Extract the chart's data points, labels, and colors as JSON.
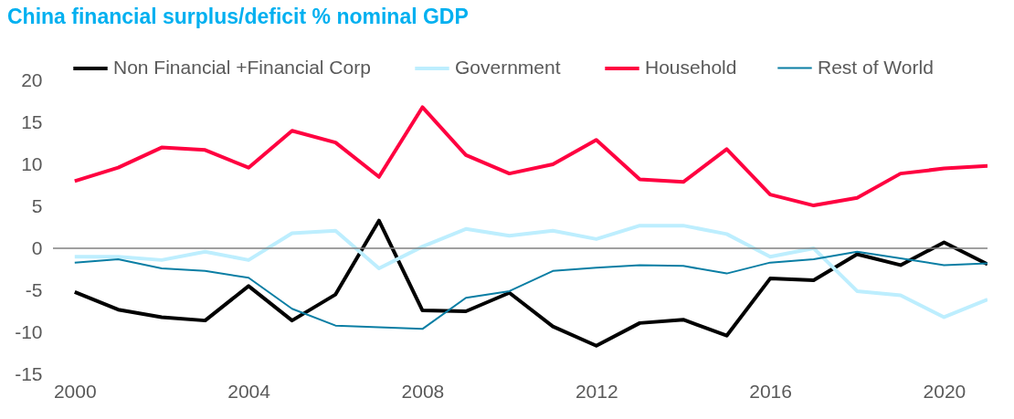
{
  "chart_data": {
    "type": "line",
    "title": "China financial surplus/deficit % nominal GDP",
    "x": [
      2000,
      2001,
      2002,
      2003,
      2004,
      2005,
      2006,
      2007,
      2008,
      2009,
      2010,
      2011,
      2012,
      2013,
      2014,
      2015,
      2016,
      2017,
      2018,
      2019,
      2020,
      2021
    ],
    "series": [
      {
        "name": "Non Financial +Financial Corp",
        "color": "#000000",
        "values": [
          -5.2,
          -7.3,
          -8.2,
          -8.6,
          -4.5,
          -8.6,
          -5.5,
          3.3,
          -7.4,
          -7.5,
          -5.3,
          -9.3,
          -11.6,
          -8.9,
          -8.5,
          -10.4,
          -3.6,
          -3.8,
          -0.7,
          -2.0,
          0.7,
          -1.9
        ]
      },
      {
        "name": "Government",
        "color": "#bdeefe",
        "values": [
          -1.0,
          -1.0,
          -1.4,
          -0.4,
          -1.4,
          1.8,
          2.1,
          -2.4,
          0.2,
          2.3,
          1.5,
          2.1,
          1.1,
          2.7,
          2.7,
          1.7,
          -1.0,
          0.0,
          -5.1,
          -5.6,
          -8.2,
          -6.1
        ]
      },
      {
        "name": "Household",
        "color": "#ff0040",
        "values": [
          8.0,
          9.6,
          12.0,
          11.7,
          9.6,
          14.0,
          12.6,
          8.5,
          16.8,
          11.1,
          8.9,
          10.0,
          12.9,
          8.2,
          7.9,
          11.8,
          6.4,
          5.1,
          6.0,
          8.9,
          9.5,
          9.8
        ]
      },
      {
        "name": "Rest of World",
        "color": "#0a7ea4",
        "values": [
          -1.7,
          -1.3,
          -2.4,
          -2.7,
          -3.5,
          -7.2,
          -9.2,
          -9.4,
          -9.6,
          -5.9,
          -5.1,
          -2.7,
          -2.3,
          -2.0,
          -2.1,
          -3.0,
          -1.7,
          -1.3,
          -0.4,
          -1.2,
          -2.0,
          -1.8
        ]
      }
    ],
    "xlim": [
      1999.5,
      2021
    ],
    "xticks": [
      2000,
      2004,
      2008,
      2012,
      2016,
      2020
    ],
    "ylim": [
      -15,
      20
    ],
    "yticks": [
      -15,
      -10,
      -5,
      0,
      5,
      10,
      15,
      20
    ],
    "ref_lines": [
      {
        "axis": "y",
        "value": 0,
        "color": "#808080"
      }
    ],
    "grid": false,
    "legend": "top",
    "marker": "none",
    "line_style": "solid"
  }
}
